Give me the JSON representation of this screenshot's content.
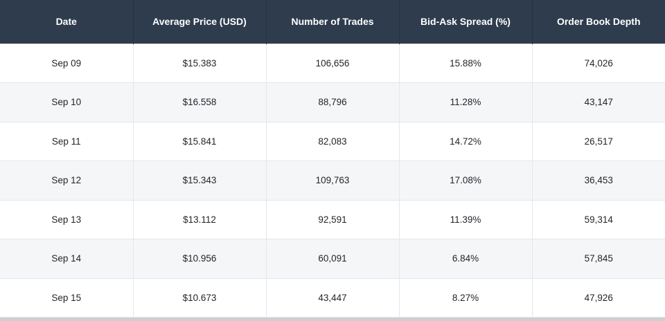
{
  "chart_data": {
    "type": "table",
    "columns": [
      "Date",
      "Average Price (USD)",
      "Number of Trades",
      "Bid-Ask Spread (%)",
      "Order Book Depth"
    ],
    "rows": [
      [
        "Sep 09",
        "$15.383",
        "106,656",
        "15.88%",
        "74,026"
      ],
      [
        "Sep 10",
        "$16.558",
        "88,796",
        "11.28%",
        "43,147"
      ],
      [
        "Sep 11",
        "$15.841",
        "82,083",
        "14.72%",
        "26,517"
      ],
      [
        "Sep 12",
        "$15.343",
        "109,763",
        "17.08%",
        "36,453"
      ],
      [
        "Sep 13",
        "$13.112",
        "92,591",
        "11.39%",
        "59,314"
      ],
      [
        "Sep 14",
        "$10.956",
        "60,091",
        "6.84%",
        "57,845"
      ],
      [
        "Sep 15",
        "$10.673",
        "43,447",
        "8.27%",
        "47,926"
      ]
    ],
    "series": [
      {
        "name": "Average Price (USD)",
        "values": [
          15.383,
          16.558,
          15.841,
          15.343,
          13.112,
          10.956,
          10.673
        ]
      },
      {
        "name": "Number of Trades",
        "values": [
          106656,
          88796,
          82083,
          109763,
          92591,
          60091,
          43447
        ]
      },
      {
        "name": "Bid-Ask Spread (%)",
        "values": [
          15.88,
          11.28,
          14.72,
          17.08,
          11.39,
          6.84,
          8.27
        ]
      },
      {
        "name": "Order Book Depth",
        "values": [
          74026,
          43147,
          26517,
          36453,
          59314,
          57845,
          47926
        ]
      }
    ],
    "categories": [
      "Sep 09",
      "Sep 10",
      "Sep 11",
      "Sep 12",
      "Sep 13",
      "Sep 14",
      "Sep 15"
    ]
  },
  "colors": {
    "header_bg": "#2e3c4e",
    "header_text": "#ffffff",
    "header_divider": "#26323f",
    "row_bg": "#ffffff",
    "row_alt_bg": "#f5f6f8",
    "cell_border": "#e4e6ea",
    "body_text": "#1f2328",
    "bottom_strip": "#cdcfd2"
  }
}
